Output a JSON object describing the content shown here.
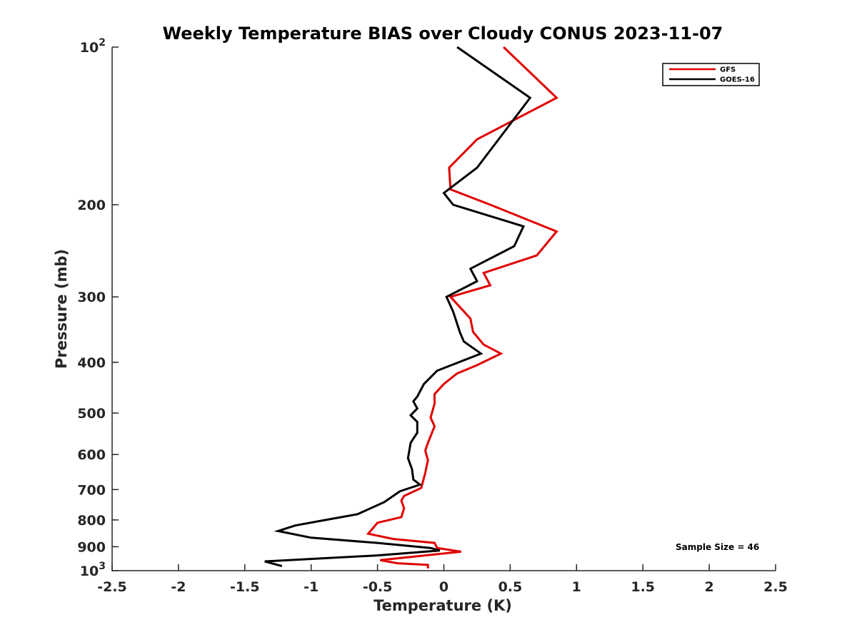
{
  "chart_data": {
    "type": "line",
    "title": "Weekly Temperature BIAS over Cloudy CONUS 2023-11-07",
    "xlabel": "Temperature (K)",
    "ylabel": "Pressure (mb)",
    "xlim": [
      -2.5,
      2.5
    ],
    "ylim": [
      1000,
      100
    ],
    "y_scale": "log",
    "y_reversed": true,
    "x_ticks": [
      -2.5,
      -2,
      -1.5,
      -1,
      -0.5,
      0,
      0.5,
      1,
      1.5,
      2,
      2.5
    ],
    "x_tick_labels": [
      "-2.5",
      "-2",
      "-1.5",
      "-1",
      "-0.5",
      "0",
      "0.5",
      "1",
      "1.5",
      "2",
      "2.5"
    ],
    "y_ticks": [
      100,
      200,
      300,
      400,
      500,
      600,
      700,
      800,
      900,
      1000
    ],
    "y_tick_labels": [
      {
        "base": "10",
        "exp": "2"
      },
      {
        "base": "200",
        "exp": ""
      },
      {
        "base": "300",
        "exp": ""
      },
      {
        "base": "400",
        "exp": ""
      },
      {
        "base": "500",
        "exp": ""
      },
      {
        "base": "600",
        "exp": ""
      },
      {
        "base": "700",
        "exp": ""
      },
      {
        "base": "800",
        "exp": ""
      },
      {
        "base": "900",
        "exp": ""
      },
      {
        "base": "10",
        "exp": "3"
      }
    ],
    "grid": false,
    "legend_position": "top-right",
    "annotation": "Sample Size = 46",
    "series": [
      {
        "name": "GFS",
        "color": "#e00000",
        "points": [
          [
            0.45,
            100
          ],
          [
            0.85,
            125
          ],
          [
            0.25,
            150
          ],
          [
            0.04,
            170
          ],
          [
            0.05,
            187
          ],
          [
            0.35,
            200
          ],
          [
            0.85,
            225
          ],
          [
            0.7,
            250
          ],
          [
            0.3,
            270
          ],
          [
            0.35,
            285
          ],
          [
            0.05,
            300
          ],
          [
            0.2,
            330
          ],
          [
            0.22,
            350
          ],
          [
            0.3,
            370
          ],
          [
            0.43,
            385
          ],
          [
            0.25,
            405
          ],
          [
            0.1,
            420
          ],
          [
            0.0,
            440
          ],
          [
            -0.07,
            460
          ],
          [
            -0.07,
            480
          ],
          [
            -0.1,
            510
          ],
          [
            -0.07,
            530
          ],
          [
            -0.12,
            570
          ],
          [
            -0.14,
            590
          ],
          [
            -0.12,
            615
          ],
          [
            -0.14,
            650
          ],
          [
            -0.17,
            695
          ],
          [
            -0.3,
            720
          ],
          [
            -0.32,
            735
          ],
          [
            -0.3,
            760
          ],
          [
            -0.32,
            790
          ],
          [
            -0.5,
            810
          ],
          [
            -0.57,
            850
          ],
          [
            -0.38,
            870
          ],
          [
            -0.07,
            885
          ],
          [
            -0.05,
            905
          ],
          [
            0.13,
            920
          ],
          [
            -0.48,
            955
          ],
          [
            -0.35,
            968
          ],
          [
            -0.12,
            975
          ],
          [
            -0.12,
            990
          ]
        ]
      },
      {
        "name": "GOES-16",
        "color": "#000000",
        "points": [
          [
            0.1,
            100
          ],
          [
            0.65,
            125
          ],
          [
            0.25,
            170
          ],
          [
            0.0,
            190
          ],
          [
            0.07,
            200
          ],
          [
            0.6,
            220
          ],
          [
            0.53,
            240
          ],
          [
            0.2,
            265
          ],
          [
            0.25,
            280
          ],
          [
            0.02,
            300
          ],
          [
            0.07,
            320
          ],
          [
            0.12,
            350
          ],
          [
            0.15,
            365
          ],
          [
            0.28,
            385
          ],
          [
            -0.05,
            415
          ],
          [
            -0.15,
            440
          ],
          [
            -0.2,
            465
          ],
          [
            -0.23,
            475
          ],
          [
            -0.2,
            490
          ],
          [
            -0.25,
            505
          ],
          [
            -0.2,
            520
          ],
          [
            -0.2,
            545
          ],
          [
            -0.25,
            570
          ],
          [
            -0.27,
            610
          ],
          [
            -0.24,
            640
          ],
          [
            -0.23,
            670
          ],
          [
            -0.18,
            685
          ],
          [
            -0.33,
            705
          ],
          [
            -0.45,
            740
          ],
          [
            -0.65,
            780
          ],
          [
            -0.95,
            805
          ],
          [
            -1.12,
            820
          ],
          [
            -1.25,
            840
          ],
          [
            -1.0,
            865
          ],
          [
            -0.5,
            885
          ],
          [
            -0.1,
            905
          ],
          [
            -0.03,
            915
          ],
          [
            -0.5,
            935
          ],
          [
            -1.35,
            960
          ],
          [
            -1.22,
            980
          ]
        ]
      }
    ]
  }
}
